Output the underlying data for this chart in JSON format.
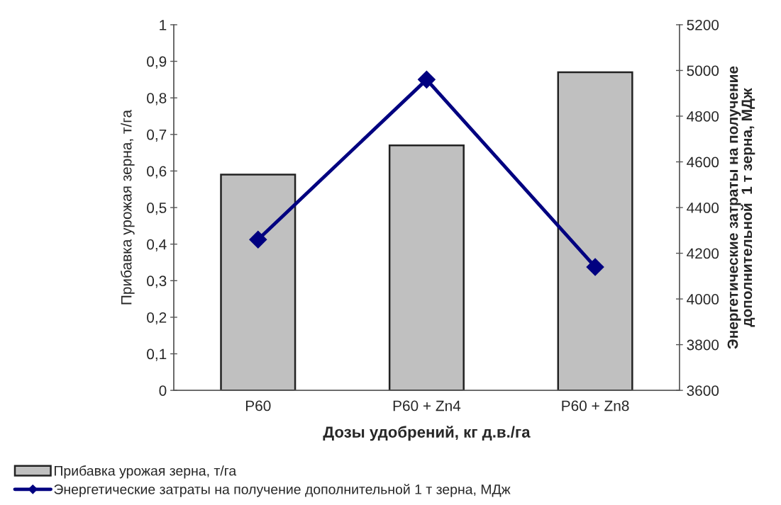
{
  "chart_data": {
    "type": "bar",
    "categories": [
      "P60",
      "P60 + Zn4",
      "P60 + Zn8"
    ],
    "series": [
      {
        "name": "Прибавка урожая зерна, т/га",
        "color": "#c0c0c0",
        "values": [
          0.59,
          0.67,
          0.87
        ]
      },
      {
        "name": "Энергетические затраты на получение дополнительной 1 т зерна, МДж",
        "type": "line",
        "axis": "y2",
        "color": "#000080",
        "values": [
          4260,
          4960,
          4140
        ]
      }
    ],
    "xlabel": "Дозы удобрений, кг д.в./га",
    "ylabel": "Прибавка урожая зерна, т/га",
    "y2label": "Энергетические затраты на получение\nдополнительной  1 т зерна, МДж",
    "ylim": [
      0,
      1
    ],
    "yticks": [
      0,
      {
        "value": 0.1,
        "label": "0,1"
      },
      {
        "value": 0.2,
        "label": "0,2"
      },
      {
        "value": 0.3,
        "label": "0,3"
      },
      {
        "value": 0.4,
        "label": "0,4"
      },
      {
        "value": 0.5,
        "label": "0,5"
      },
      {
        "value": 0.6,
        "label": "0,6"
      },
      {
        "value": 0.7,
        "label": "0,7"
      },
      {
        "value": 0.8,
        "label": "0,8"
      },
      {
        "value": 0.9,
        "label": "0,9"
      },
      1
    ],
    "y2lim": [
      3600,
      5200
    ],
    "y2ticks": [
      3600,
      3800,
      4000,
      4200,
      4400,
      4600,
      4800,
      5000,
      5200
    ],
    "legend": "bottom",
    "marker": "diamond",
    "line_style": "solid"
  }
}
